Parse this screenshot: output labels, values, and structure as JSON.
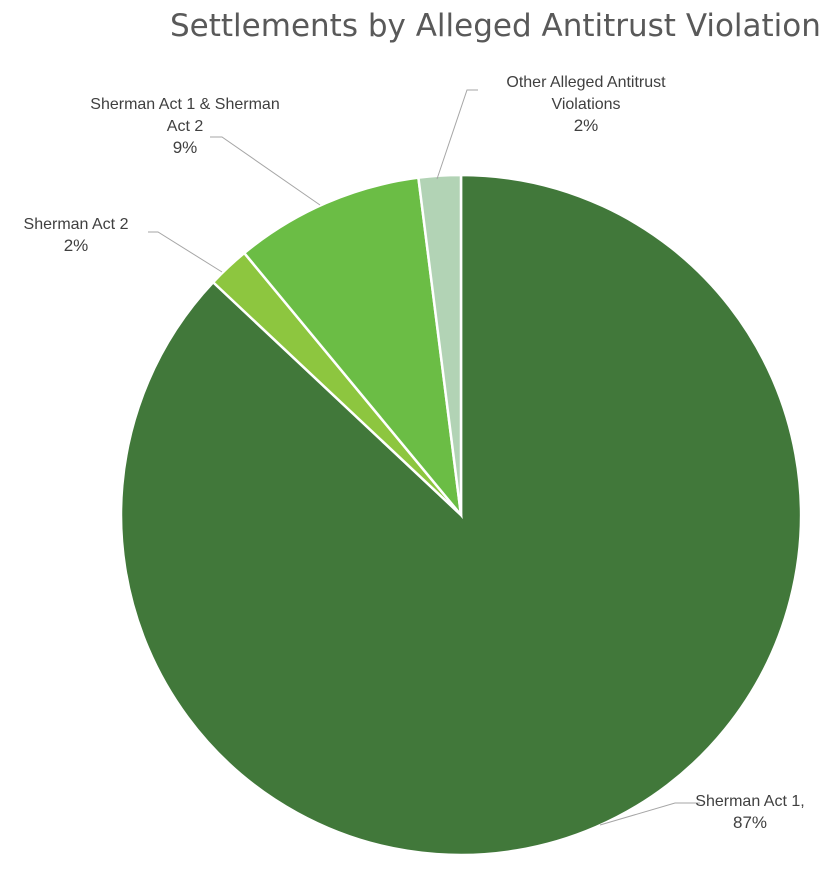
{
  "chart_data": {
    "type": "pie",
    "title": "Settlements by Alleged Antitrust Violation",
    "slices": [
      {
        "name": "Sherman Act 1",
        "value": 87,
        "label_lines": [
          "Sherman Act 1,",
          "87%"
        ],
        "color": "#41783a"
      },
      {
        "name": "Sherman Act 2",
        "value": 2,
        "label_lines": [
          "Sherman Act 2",
          "2%"
        ],
        "color": "#8dc63f"
      },
      {
        "name": "Sherman Act 1 & Sherman Act 2",
        "value": 9,
        "label_lines": [
          "Sherman Act 1 & Sherman",
          "Act 2",
          "9%"
        ],
        "color": "#6bbd45"
      },
      {
        "name": "Other Alleged Antitrust Violations",
        "value": 2,
        "label_lines": [
          "Other Alleged Antitrust",
          "Violations",
          "2%"
        ],
        "color": "#b2d3b5"
      }
    ],
    "start_angle": "12 o'clock",
    "direction": "clockwise",
    "legend": "none"
  }
}
